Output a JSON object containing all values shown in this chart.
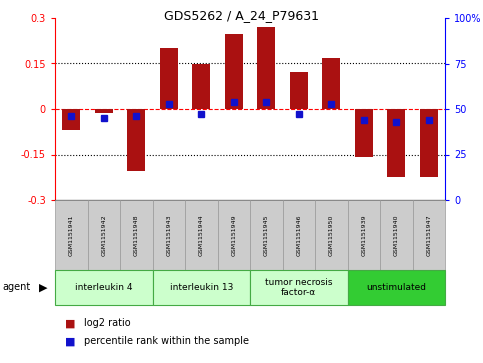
{
  "title": "GDS5262 / A_24_P79631",
  "samples": [
    "GSM1151941",
    "GSM1151942",
    "GSM1151948",
    "GSM1151943",
    "GSM1151944",
    "GSM1151949",
    "GSM1151945",
    "GSM1151946",
    "GSM1151950",
    "GSM1151939",
    "GSM1151940",
    "GSM1151947"
  ],
  "log2_ratio": [
    -0.07,
    -0.012,
    -0.205,
    0.2,
    0.148,
    0.248,
    0.27,
    0.122,
    0.168,
    -0.158,
    -0.225,
    -0.225
  ],
  "percentile_rank": [
    46,
    45,
    46,
    53,
    47,
    54,
    54,
    47,
    53,
    44,
    43,
    44
  ],
  "bar_color": "#aa1111",
  "square_color": "#1111cc",
  "ylim_left": [
    -0.3,
    0.3
  ],
  "ylim_right": [
    0,
    100
  ],
  "yticks_left": [
    -0.3,
    -0.15,
    0,
    0.15,
    0.3
  ],
  "yticks_right": [
    0,
    25,
    50,
    75,
    100
  ],
  "ytick_labels_left": [
    "-0.3",
    "-0.15",
    "0",
    "0.15",
    "0.3"
  ],
  "ytick_labels_right": [
    "0",
    "25",
    "50",
    "75",
    "100%"
  ],
  "dotted_lines": [
    -0.15,
    0.15
  ],
  "groups": [
    {
      "label": "interleukin 4",
      "start": 0,
      "end": 3,
      "color": "#ccffcc"
    },
    {
      "label": "interleukin 13",
      "start": 3,
      "end": 6,
      "color": "#ccffcc"
    },
    {
      "label": "tumor necrosis\nfactor-α",
      "start": 6,
      "end": 9,
      "color": "#ccffcc"
    },
    {
      "label": "unstimulated",
      "start": 9,
      "end": 12,
      "color": "#33cc33"
    }
  ],
  "agent_label": "agent",
  "legend_log2": "log2 ratio",
  "legend_pct": "percentile rank within the sample",
  "bar_width": 0.55,
  "square_size": 4,
  "sample_box_color": "#cccccc",
  "sample_box_edge": "#999999"
}
